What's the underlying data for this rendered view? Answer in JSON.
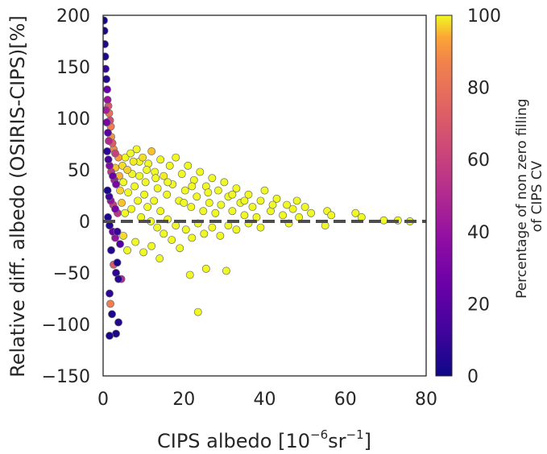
{
  "chart_data": {
    "type": "scatter",
    "xlabel": {
      "main": "CIPS albedo [10",
      "exp1": "−6",
      "mid": "sr",
      "exp2": "−1",
      "end": "]"
    },
    "ylabel": "Relative diff. albedo (OSIRIS-CIPS)[%]",
    "colorbar_label": {
      "line1": "Percentage of non zero filling",
      "line2": "of CIPS CV"
    },
    "xlim": [
      0,
      80
    ],
    "ylim": [
      -150,
      200
    ],
    "x_ticks": [
      "0",
      "20",
      "40",
      "60",
      "80"
    ],
    "y_ticks": [
      "200",
      "150",
      "100",
      "50",
      "0",
      "−50",
      "−100",
      "−150"
    ],
    "colorbar_range": [
      0,
      100
    ],
    "colorbar_ticks": [
      "100",
      "80",
      "60",
      "40",
      "20",
      "0"
    ],
    "colormap": "plasma",
    "reference_line": {
      "y": 0,
      "style": "dashed",
      "color": "#4d4d4d"
    },
    "grid": false,
    "points": [
      {
        "x": 0.2,
        "y": 195,
        "c": 2
      },
      {
        "x": 0.3,
        "y": 185,
        "c": 3
      },
      {
        "x": 0.4,
        "y": 172,
        "c": 5
      },
      {
        "x": 0.5,
        "y": 160,
        "c": 4
      },
      {
        "x": 0.6,
        "y": 148,
        "c": 10
      },
      {
        "x": 0.8,
        "y": 138,
        "c": 6
      },
      {
        "x": 1.0,
        "y": 128,
        "c": 25
      },
      {
        "x": 1.1,
        "y": 118,
        "c": 40
      },
      {
        "x": 1.3,
        "y": 112,
        "c": 70
      },
      {
        "x": 1.5,
        "y": 105,
        "c": 80
      },
      {
        "x": 1.7,
        "y": 98,
        "c": 65
      },
      {
        "x": 1.9,
        "y": 92,
        "c": 85
      },
      {
        "x": 0.7,
        "y": 108,
        "c": 45
      },
      {
        "x": 0.9,
        "y": 96,
        "c": 30
      },
      {
        "x": 1.2,
        "y": 86,
        "c": 20
      },
      {
        "x": 1.4,
        "y": 78,
        "c": 50
      },
      {
        "x": 2.0,
        "y": 82,
        "c": 90
      },
      {
        "x": 2.3,
        "y": 76,
        "c": 72
      },
      {
        "x": 2.6,
        "y": 70,
        "c": 88
      },
      {
        "x": 3.0,
        "y": 66,
        "c": 60
      },
      {
        "x": 1.0,
        "y": 68,
        "c": 8
      },
      {
        "x": 1.3,
        "y": 60,
        "c": 15
      },
      {
        "x": 1.6,
        "y": 54,
        "c": 35
      },
      {
        "x": 2.0,
        "y": 48,
        "c": 55
      },
      {
        "x": 2.4,
        "y": 44,
        "c": 25
      },
      {
        "x": 2.8,
        "y": 40,
        "c": 45
      },
      {
        "x": 3.2,
        "y": 36,
        "c": 30
      },
      {
        "x": 1.1,
        "y": 30,
        "c": 3
      },
      {
        "x": 1.5,
        "y": 24,
        "c": 12
      },
      {
        "x": 1.9,
        "y": 20,
        "c": 40
      },
      {
        "x": 2.5,
        "y": 16,
        "c": 60
      },
      {
        "x": 3.0,
        "y": 12,
        "c": 30
      },
      {
        "x": 3.6,
        "y": 8,
        "c": 55
      },
      {
        "x": 1.2,
        "y": 4,
        "c": 4
      },
      {
        "x": 1.6,
        "y": -4,
        "c": 6
      },
      {
        "x": 2.4,
        "y": -10,
        "c": 25
      },
      {
        "x": 3.0,
        "y": -16,
        "c": 40
      },
      {
        "x": 3.5,
        "y": -10,
        "c": 10
      },
      {
        "x": 4.2,
        "y": -22,
        "c": 18
      },
      {
        "x": 2.0,
        "y": -28,
        "c": 5
      },
      {
        "x": 2.6,
        "y": -42,
        "c": 70
      },
      {
        "x": 3.2,
        "y": -50,
        "c": 8
      },
      {
        "x": 3.8,
        "y": -56,
        "c": 6
      },
      {
        "x": 4.5,
        "y": -56,
        "c": 50
      },
      {
        "x": 3.5,
        "y": -40,
        "c": 3
      },
      {
        "x": 1.6,
        "y": -70,
        "c": 8
      },
      {
        "x": 1.8,
        "y": -80,
        "c": 85
      },
      {
        "x": 2.2,
        "y": -90,
        "c": 4
      },
      {
        "x": 3.8,
        "y": -98,
        "c": 5
      },
      {
        "x": 3.2,
        "y": -109,
        "c": 4
      },
      {
        "x": 1.6,
        "y": -111,
        "c": 3
      },
      {
        "x": 4.0,
        "y": 44,
        "c": 95
      },
      {
        "x": 4.8,
        "y": 54,
        "c": 98
      },
      {
        "x": 5.5,
        "y": 62,
        "c": 100
      },
      {
        "x": 6.0,
        "y": 50,
        "c": 97
      },
      {
        "x": 6.8,
        "y": 66,
        "c": 100
      },
      {
        "x": 7.5,
        "y": 58,
        "c": 99
      },
      {
        "x": 8.3,
        "y": 70,
        "c": 100
      },
      {
        "x": 9.0,
        "y": 44,
        "c": 100
      },
      {
        "x": 9.8,
        "y": 62,
        "c": 98
      },
      {
        "x": 10.5,
        "y": 38,
        "c": 100
      },
      {
        "x": 11.2,
        "y": 56,
        "c": 100
      },
      {
        "x": 12.0,
        "y": 68,
        "c": 96
      },
      {
        "x": 12.8,
        "y": 48,
        "c": 100
      },
      {
        "x": 13.5,
        "y": 32,
        "c": 100
      },
      {
        "x": 14.2,
        "y": 60,
        "c": 100
      },
      {
        "x": 15.0,
        "y": 44,
        "c": 99
      },
      {
        "x": 15.8,
        "y": 26,
        "c": 100
      },
      {
        "x": 16.5,
        "y": 54,
        "c": 100
      },
      {
        "x": 17.2,
        "y": 36,
        "c": 100
      },
      {
        "x": 18.0,
        "y": 62,
        "c": 100
      },
      {
        "x": 18.8,
        "y": 20,
        "c": 100
      },
      {
        "x": 19.5,
        "y": 46,
        "c": 100
      },
      {
        "x": 20.3,
        "y": 30,
        "c": 100
      },
      {
        "x": 21.0,
        "y": 54,
        "c": 100
      },
      {
        "x": 21.8,
        "y": 14,
        "c": 100
      },
      {
        "x": 22.5,
        "y": 40,
        "c": 100
      },
      {
        "x": 23.2,
        "y": 24,
        "c": 100
      },
      {
        "x": 24.0,
        "y": 48,
        "c": 100
      },
      {
        "x": 24.8,
        "y": 10,
        "c": 100
      },
      {
        "x": 25.5,
        "y": 34,
        "c": 100
      },
      {
        "x": 26.3,
        "y": 18,
        "c": 100
      },
      {
        "x": 27.0,
        "y": 42,
        "c": 100
      },
      {
        "x": 27.8,
        "y": 8,
        "c": 100
      },
      {
        "x": 28.5,
        "y": 30,
        "c": 100
      },
      {
        "x": 29.2,
        "y": 16,
        "c": 100
      },
      {
        "x": 30.0,
        "y": 38,
        "c": 100
      },
      {
        "x": 31.0,
        "y": 24,
        "c": 100
      },
      {
        "x": 32.0,
        "y": 10,
        "c": 100
      },
      {
        "x": 33.0,
        "y": 32,
        "c": 100
      },
      {
        "x": 34.0,
        "y": 18,
        "c": 100
      },
      {
        "x": 35.0,
        "y": 6,
        "c": 100
      },
      {
        "x": 36.0,
        "y": 26,
        "c": 100
      },
      {
        "x": 37.0,
        "y": 14,
        "c": 100
      },
      {
        "x": 38.0,
        "y": 4,
        "c": 100
      },
      {
        "x": 39.0,
        "y": 20,
        "c": 100
      },
      {
        "x": 40.0,
        "y": 30,
        "c": 100
      },
      {
        "x": 41.5,
        "y": 10,
        "c": 100
      },
      {
        "x": 43.0,
        "y": 22,
        "c": 100
      },
      {
        "x": 44.5,
        "y": 6,
        "c": 100
      },
      {
        "x": 45.5,
        "y": 16,
        "c": 100
      },
      {
        "x": 47.0,
        "y": 12,
        "c": 100
      },
      {
        "x": 48.5,
        "y": 4,
        "c": 100
      },
      {
        "x": 50.0,
        "y": 14,
        "c": 100
      },
      {
        "x": 51.5,
        "y": 8,
        "c": 100
      },
      {
        "x": 55.5,
        "y": 10,
        "c": 100
      },
      {
        "x": 56.5,
        "y": 6,
        "c": 100
      },
      {
        "x": 62.5,
        "y": 8,
        "c": 100
      },
      {
        "x": 64.0,
        "y": 4,
        "c": 100
      },
      {
        "x": 69.5,
        "y": 1,
        "c": 100
      },
      {
        "x": 73.0,
        "y": 1,
        "c": 100
      },
      {
        "x": 76.0,
        "y": 0,
        "c": 100
      },
      {
        "x": 4.6,
        "y": 18,
        "c": 96
      },
      {
        "x": 5.4,
        "y": 8,
        "c": 100
      },
      {
        "x": 6.2,
        "y": 28,
        "c": 100
      },
      {
        "x": 7.0,
        "y": 12,
        "c": 100
      },
      {
        "x": 7.8,
        "y": 34,
        "c": 100
      },
      {
        "x": 8.6,
        "y": 20,
        "c": 100
      },
      {
        "x": 9.4,
        "y": 4,
        "c": 100
      },
      {
        "x": 10.2,
        "y": 26,
        "c": 100
      },
      {
        "x": 11.0,
        "y": 14,
        "c": 100
      },
      {
        "x": 11.8,
        "y": 0,
        "c": 100
      },
      {
        "x": 12.6,
        "y": 20,
        "c": 100
      },
      {
        "x": 13.4,
        "y": -6,
        "c": 100
      },
      {
        "x": 14.2,
        "y": 10,
        "c": 100
      },
      {
        "x": 15.0,
        "y": -12,
        "c": 100
      },
      {
        "x": 16.0,
        "y": 2,
        "c": 100
      },
      {
        "x": 17.0,
        "y": -18,
        "c": 100
      },
      {
        "x": 18.0,
        "y": -4,
        "c": 100
      },
      {
        "x": 19.0,
        "y": -26,
        "c": 100
      },
      {
        "x": 20.5,
        "y": -8,
        "c": 100
      },
      {
        "x": 22.0,
        "y": -16,
        "c": 100
      },
      {
        "x": 23.5,
        "y": -2,
        "c": 100
      },
      {
        "x": 25.0,
        "y": -12,
        "c": 100
      },
      {
        "x": 27.0,
        "y": -6,
        "c": 100
      },
      {
        "x": 29.0,
        "y": -14,
        "c": 100
      },
      {
        "x": 31.0,
        "y": -4,
        "c": 100
      },
      {
        "x": 33.0,
        "y": -8,
        "c": 100
      },
      {
        "x": 36.0,
        "y": -2,
        "c": 100
      },
      {
        "x": 39.0,
        "y": -6,
        "c": 100
      },
      {
        "x": 46.0,
        "y": -2,
        "c": 100
      },
      {
        "x": 55.0,
        "y": -4,
        "c": 100
      },
      {
        "x": 5.0,
        "y": -14,
        "c": 98
      },
      {
        "x": 6.0,
        "y": -28,
        "c": 100
      },
      {
        "x": 8.0,
        "y": -20,
        "c": 100
      },
      {
        "x": 10.0,
        "y": -30,
        "c": 100
      },
      {
        "x": 12.0,
        "y": -24,
        "c": 100
      },
      {
        "x": 14.0,
        "y": -36,
        "c": 100
      },
      {
        "x": 21.5,
        "y": -52,
        "c": 100
      },
      {
        "x": 25.5,
        "y": -46,
        "c": 100
      },
      {
        "x": 30.5,
        "y": -48,
        "c": 100
      },
      {
        "x": 23.5,
        "y": -88,
        "c": 100
      },
      {
        "x": 3.8,
        "y": 62,
        "c": 92
      },
      {
        "x": 3.0,
        "y": 52,
        "c": 96
      },
      {
        "x": 4.2,
        "y": 30,
        "c": 97
      },
      {
        "x": 5.0,
        "y": 38,
        "c": 100
      },
      {
        "x": 7.2,
        "y": 46,
        "c": 100
      },
      {
        "x": 9.0,
        "y": 58,
        "c": 100
      },
      {
        "x": 10.8,
        "y": 50,
        "c": 100
      },
      {
        "x": 13.0,
        "y": 42,
        "c": 100
      },
      {
        "x": 16.0,
        "y": 38,
        "c": 100
      },
      {
        "x": 20.0,
        "y": 18,
        "c": 100
      },
      {
        "x": 22.0,
        "y": 34,
        "c": 100
      },
      {
        "x": 26.0,
        "y": 28,
        "c": 100
      },
      {
        "x": 32.0,
        "y": 26,
        "c": 100
      },
      {
        "x": 35.0,
        "y": 20,
        "c": 100
      },
      {
        "x": 42.0,
        "y": 16,
        "c": 100
      },
      {
        "x": 48.0,
        "y": 20,
        "c": 100
      }
    ]
  }
}
